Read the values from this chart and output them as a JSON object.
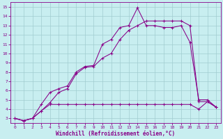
{
  "title": "",
  "xlabel": "Windchill (Refroidissement éolien,°C)",
  "ylabel": "",
  "background_color": "#c8eef0",
  "grid_color": "#a0ccd0",
  "line_color": "#880088",
  "spine_color": "#880088",
  "xlim": [
    -0.5,
    23.5
  ],
  "ylim": [
    2.5,
    15.5
  ],
  "xticks": [
    0,
    1,
    2,
    3,
    4,
    5,
    6,
    7,
    8,
    9,
    10,
    11,
    12,
    13,
    14,
    15,
    16,
    17,
    18,
    19,
    20,
    21,
    22,
    23
  ],
  "yticks": [
    3,
    4,
    5,
    6,
    7,
    8,
    9,
    10,
    11,
    12,
    13,
    14,
    15
  ],
  "series1": [
    [
      0,
      3.0
    ],
    [
      1,
      2.75
    ],
    [
      2,
      3.0
    ],
    [
      3,
      4.5
    ],
    [
      4,
      5.8
    ],
    [
      5,
      6.2
    ],
    [
      6,
      6.5
    ],
    [
      7,
      8.0
    ],
    [
      8,
      8.6
    ],
    [
      9,
      8.7
    ],
    [
      10,
      11.0
    ],
    [
      11,
      11.5
    ],
    [
      12,
      12.8
    ],
    [
      13,
      13.0
    ],
    [
      14,
      14.9
    ],
    [
      15,
      13.0
    ],
    [
      16,
      13.0
    ],
    [
      17,
      12.8
    ],
    [
      18,
      12.8
    ],
    [
      19,
      13.0
    ],
    [
      20,
      11.2
    ],
    [
      21,
      5.0
    ],
    [
      22,
      5.0
    ],
    [
      23,
      4.2
    ]
  ],
  "series2": [
    [
      0,
      3.0
    ],
    [
      1,
      2.75
    ],
    [
      2,
      3.0
    ],
    [
      3,
      3.8
    ],
    [
      4,
      4.7
    ],
    [
      5,
      5.8
    ],
    [
      6,
      6.2
    ],
    [
      7,
      7.8
    ],
    [
      8,
      8.5
    ],
    [
      9,
      8.6
    ],
    [
      10,
      9.5
    ],
    [
      11,
      10.0
    ],
    [
      12,
      11.5
    ],
    [
      13,
      12.5
    ],
    [
      14,
      13.0
    ],
    [
      15,
      13.5
    ],
    [
      16,
      13.5
    ],
    [
      17,
      13.5
    ],
    [
      18,
      13.5
    ],
    [
      19,
      13.5
    ],
    [
      20,
      13.0
    ],
    [
      21,
      4.8
    ],
    [
      22,
      4.8
    ],
    [
      23,
      4.2
    ]
  ],
  "series3": [
    [
      0,
      3.0
    ],
    [
      1,
      2.75
    ],
    [
      2,
      3.0
    ],
    [
      3,
      3.8
    ],
    [
      4,
      4.5
    ],
    [
      5,
      4.5
    ],
    [
      6,
      4.5
    ],
    [
      7,
      4.5
    ],
    [
      8,
      4.5
    ],
    [
      9,
      4.5
    ],
    [
      10,
      4.5
    ],
    [
      11,
      4.5
    ],
    [
      12,
      4.5
    ],
    [
      13,
      4.5
    ],
    [
      14,
      4.5
    ],
    [
      15,
      4.5
    ],
    [
      16,
      4.5
    ],
    [
      17,
      4.5
    ],
    [
      18,
      4.5
    ],
    [
      19,
      4.5
    ],
    [
      20,
      4.5
    ],
    [
      21,
      4.0
    ],
    [
      22,
      4.8
    ],
    [
      23,
      4.2
    ]
  ]
}
